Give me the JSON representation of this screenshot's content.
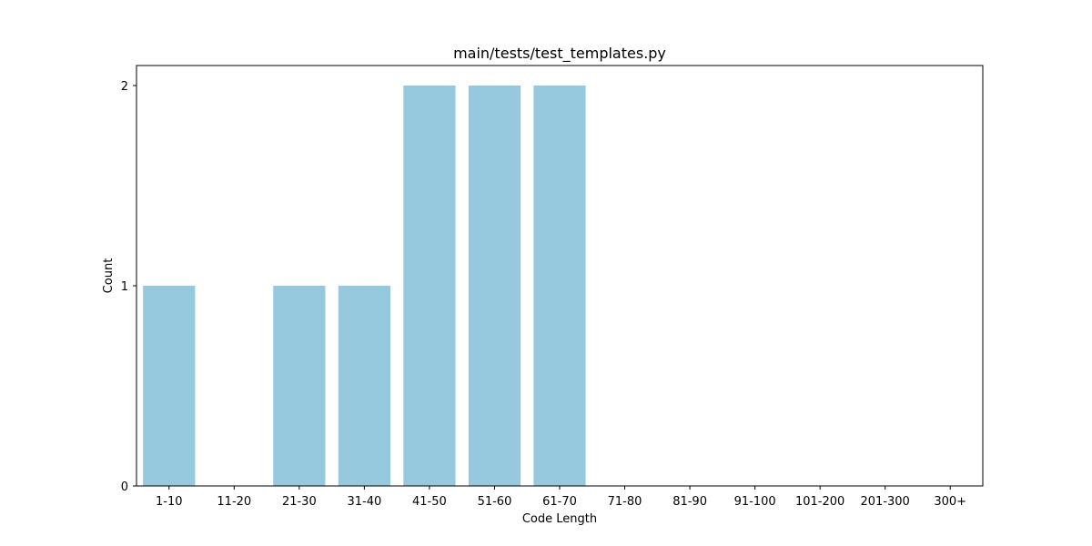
{
  "chart_data": {
    "type": "bar",
    "title": "main/tests/test_templates.py",
    "xlabel": "Code Length",
    "ylabel": "Count",
    "categories": [
      "1-10",
      "11-20",
      "21-30",
      "31-40",
      "41-50",
      "51-60",
      "61-70",
      "71-80",
      "81-90",
      "91-100",
      "101-200",
      "201-300",
      "300+"
    ],
    "values": [
      1,
      0,
      1,
      1,
      2,
      2,
      2,
      0,
      0,
      0,
      0,
      0,
      0
    ],
    "ylim": [
      0,
      2.1
    ],
    "yticks": [
      0,
      1,
      2
    ],
    "bar_color": "#96c9de",
    "grid": false,
    "legend": "none"
  }
}
